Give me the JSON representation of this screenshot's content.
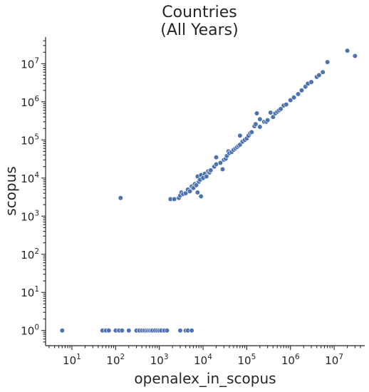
{
  "chart_data": {
    "type": "scatter",
    "title_line1": "Countries",
    "title_line2": "(All Years)",
    "xlabel": "openalex_in_scopus",
    "ylabel": "scopus",
    "xscale": "log",
    "yscale": "log",
    "xlim": [
      2.5,
      50000000
    ],
    "ylim": [
      0.4,
      50000000
    ],
    "x_major_ticks": [
      {
        "base": "10",
        "exp": "1",
        "value": 10
      },
      {
        "base": "10",
        "exp": "2",
        "value": 100
      },
      {
        "base": "10",
        "exp": "3",
        "value": 1000
      },
      {
        "base": "10",
        "exp": "4",
        "value": 10000
      },
      {
        "base": "10",
        "exp": "5",
        "value": 100000
      },
      {
        "base": "10",
        "exp": "6",
        "value": 1000000
      },
      {
        "base": "10",
        "exp": "7",
        "value": 10000000
      }
    ],
    "y_major_ticks": [
      {
        "base": "10",
        "exp": "0",
        "value": 1
      },
      {
        "base": "10",
        "exp": "1",
        "value": 10
      },
      {
        "base": "10",
        "exp": "2",
        "value": 100
      },
      {
        "base": "10",
        "exp": "3",
        "value": 1000
      },
      {
        "base": "10",
        "exp": "4",
        "value": 10000
      },
      {
        "base": "10",
        "exp": "5",
        "value": 100000
      },
      {
        "base": "10",
        "exp": "6",
        "value": 1000000
      },
      {
        "base": "10",
        "exp": "7",
        "value": 10000000
      }
    ],
    "grid": false,
    "color": "#4c72b0",
    "points": [
      [
        6,
        1
      ],
      [
        50,
        1
      ],
      [
        60,
        1
      ],
      [
        70,
        1
      ],
      [
        100,
        1
      ],
      [
        120,
        1
      ],
      [
        140,
        1
      ],
      [
        200,
        1
      ],
      [
        300,
        1
      ],
      [
        350,
        1
      ],
      [
        400,
        1
      ],
      [
        450,
        1
      ],
      [
        500,
        1
      ],
      [
        550,
        1
      ],
      [
        600,
        1
      ],
      [
        650,
        1
      ],
      [
        700,
        1
      ],
      [
        800,
        1
      ],
      [
        900,
        1
      ],
      [
        1000,
        1
      ],
      [
        1100,
        1
      ],
      [
        1300,
        1
      ],
      [
        1500,
        1
      ],
      [
        3000,
        1
      ],
      [
        4000,
        1
      ],
      [
        4500,
        1
      ],
      [
        5500,
        1
      ],
      [
        130,
        3000
      ],
      [
        1800,
        2800
      ],
      [
        2200,
        2800
      ],
      [
        2800,
        3000
      ],
      [
        3000,
        3500
      ],
      [
        3200,
        4200
      ],
      [
        3500,
        3800
      ],
      [
        4000,
        4000
      ],
      [
        4500,
        5000
      ],
      [
        5000,
        4500
      ],
      [
        5500,
        6000
      ],
      [
        6000,
        5500
      ],
      [
        6500,
        7000
      ],
      [
        7000,
        6500
      ],
      [
        7500,
        4200
      ],
      [
        7500,
        11000
      ],
      [
        8000,
        8000
      ],
      [
        8500,
        9000
      ],
      [
        9000,
        3300
      ],
      [
        9000,
        12000
      ],
      [
        10000,
        10000
      ],
      [
        11000,
        13000
      ],
      [
        12000,
        11000
      ],
      [
        13000,
        15000
      ],
      [
        14000,
        14000
      ],
      [
        15000,
        16000
      ],
      [
        18000,
        20000
      ],
      [
        20000,
        23000
      ],
      [
        20000,
        35000
      ],
      [
        25000,
        25000
      ],
      [
        28000,
        17000
      ],
      [
        30000,
        30000
      ],
      [
        33000,
        32000
      ],
      [
        35000,
        38000
      ],
      [
        38000,
        50000
      ],
      [
        40000,
        45000
      ],
      [
        45000,
        48000
      ],
      [
        50000,
        55000
      ],
      [
        55000,
        60000
      ],
      [
        60000,
        65000
      ],
      [
        65000,
        70000
      ],
      [
        70000,
        75000
      ],
      [
        70000,
        130000
      ],
      [
        80000,
        90000
      ],
      [
        90000,
        100000
      ],
      [
        100000,
        110000
      ],
      [
        110000,
        130000
      ],
      [
        120000,
        150000
      ],
      [
        130000,
        160000
      ],
      [
        150000,
        230000
      ],
      [
        160000,
        260000
      ],
      [
        170000,
        500000
      ],
      [
        200000,
        220000
      ],
      [
        200000,
        350000
      ],
      [
        250000,
        300000
      ],
      [
        280000,
        300000
      ],
      [
        300000,
        330000
      ],
      [
        350000,
        520000
      ],
      [
        400000,
        400000
      ],
      [
        450000,
        500000
      ],
      [
        500000,
        550000
      ],
      [
        550000,
        600000
      ],
      [
        600000,
        650000
      ],
      [
        700000,
        800000
      ],
      [
        800000,
        850000
      ],
      [
        1000000,
        1100000
      ],
      [
        1200000,
        1300000
      ],
      [
        1500000,
        1600000
      ],
      [
        1800000,
        2000000
      ],
      [
        2200000,
        2500000
      ],
      [
        2500000,
        3000000
      ],
      [
        3000000,
        3300000
      ],
      [
        4000000,
        4500000
      ],
      [
        4500000,
        5000000
      ],
      [
        5500000,
        6000000
      ],
      [
        7000000,
        11000000
      ],
      [
        20000000,
        22000000
      ],
      [
        30000000,
        16000000
      ]
    ]
  }
}
